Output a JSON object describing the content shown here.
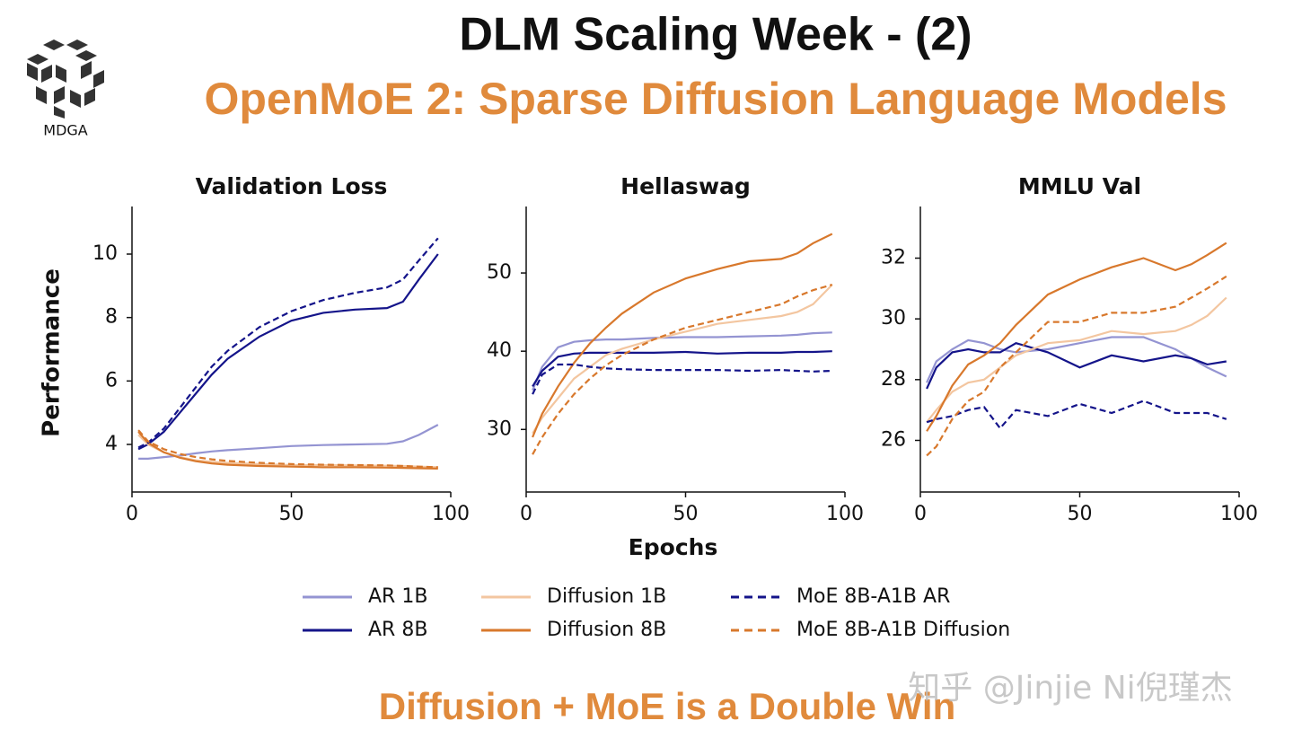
{
  "title": "DLM Scaling Week - (2)",
  "subtitle": "OpenMoE 2: Sparse Diffusion Language Models",
  "logo_text": "MDGA",
  "footer": "Diffusion + MoE is a Double Win",
  "watermark": "知乎 @Jinjie Ni倪瑾杰",
  "chart_data": [
    {
      "type": "line",
      "title": "Validation Loss",
      "y_label": "Performance",
      "x": [
        2,
        5,
        10,
        15,
        20,
        25,
        30,
        40,
        50,
        60,
        70,
        80,
        85,
        90,
        96
      ],
      "xlim": [
        0,
        100
      ],
      "xticks": [
        0,
        50,
        100
      ],
      "ylim": [
        2.5,
        11.5
      ],
      "yticks": [
        4,
        6,
        8,
        10
      ],
      "series": [
        {
          "name": "AR 1B",
          "color": "#9494d2",
          "dash": false,
          "values": [
            3.55,
            3.55,
            3.6,
            3.65,
            3.72,
            3.78,
            3.82,
            3.88,
            3.95,
            3.98,
            4.0,
            4.02,
            4.1,
            4.3,
            4.62
          ]
        },
        {
          "name": "AR 8B",
          "color": "#14148a",
          "dash": false,
          "values": [
            3.85,
            4.0,
            4.4,
            5.0,
            5.6,
            6.2,
            6.7,
            7.4,
            7.9,
            8.15,
            8.25,
            8.3,
            8.5,
            9.2,
            10.0
          ]
        },
        {
          "name": "Diffusion 1B",
          "color": "#f3c6a0",
          "dash": false,
          "values": [
            4.3,
            4.0,
            3.75,
            3.6,
            3.5,
            3.45,
            3.42,
            3.38,
            3.35,
            3.35,
            3.34,
            3.33,
            3.32,
            3.3,
            3.28
          ]
        },
        {
          "name": "Diffusion 8B",
          "color": "#d8782c",
          "dash": false,
          "values": [
            4.4,
            4.05,
            3.75,
            3.58,
            3.47,
            3.4,
            3.36,
            3.32,
            3.3,
            3.28,
            3.28,
            3.27,
            3.26,
            3.25,
            3.24
          ]
        },
        {
          "name": "MoE 8B-A1B AR",
          "color": "#14148a",
          "dash": true,
          "values": [
            3.9,
            4.05,
            4.5,
            5.15,
            5.8,
            6.45,
            6.95,
            7.7,
            8.2,
            8.55,
            8.78,
            8.95,
            9.2,
            9.8,
            10.5
          ]
        },
        {
          "name": "MoE 8B-A1B Diffusion",
          "color": "#d8782c",
          "dash": true,
          "values": [
            4.45,
            4.1,
            3.85,
            3.7,
            3.6,
            3.53,
            3.48,
            3.42,
            3.38,
            3.36,
            3.35,
            3.34,
            3.32,
            3.3,
            3.28
          ]
        }
      ]
    },
    {
      "type": "line",
      "title": "Hellaswag",
      "x_label": "Epochs",
      "x": [
        2,
        5,
        10,
        15,
        20,
        25,
        30,
        40,
        50,
        60,
        70,
        80,
        85,
        90,
        96
      ],
      "xlim": [
        0,
        100
      ],
      "xticks": [
        0,
        50,
        100
      ],
      "ylim": [
        22,
        58.5
      ],
      "yticks": [
        30,
        40,
        50
      ],
      "series": [
        {
          "name": "AR 1B",
          "color": "#9494d2",
          "dash": false,
          "values": [
            35,
            38,
            40.5,
            41.2,
            41.4,
            41.5,
            41.5,
            41.7,
            41.8,
            41.8,
            41.9,
            42,
            42.1,
            42.3,
            42.4
          ]
        },
        {
          "name": "AR 8B",
          "color": "#14148a",
          "dash": false,
          "values": [
            35.5,
            37.5,
            39.3,
            39.7,
            39.8,
            39.8,
            39.8,
            39.8,
            39.9,
            39.7,
            39.8,
            39.8,
            39.9,
            39.9,
            40
          ]
        },
        {
          "name": "Diffusion 1B",
          "color": "#f3c6a0",
          "dash": false,
          "values": [
            29.5,
            31.5,
            34,
            36.5,
            38,
            39.5,
            40.3,
            41.5,
            42.5,
            43.5,
            44,
            44.5,
            45,
            46,
            48.5
          ]
        },
        {
          "name": "Diffusion 8B",
          "color": "#d8782c",
          "dash": false,
          "values": [
            29,
            32,
            35.5,
            38.5,
            41,
            43,
            44.8,
            47.5,
            49.3,
            50.5,
            51.5,
            51.8,
            52.5,
            53.8,
            55
          ]
        },
        {
          "name": "MoE 8B-A1B AR",
          "color": "#14148a",
          "dash": true,
          "values": [
            34.5,
            37,
            38.3,
            38.3,
            38,
            37.8,
            37.7,
            37.6,
            37.6,
            37.6,
            37.5,
            37.6,
            37.5,
            37.4,
            37.5
          ]
        },
        {
          "name": "MoE 8B-A1B Diffusion",
          "color": "#d8782c",
          "dash": true,
          "values": [
            26.8,
            29,
            32,
            34.5,
            36.5,
            38.2,
            39.5,
            41.5,
            43,
            44,
            45,
            46,
            47,
            47.8,
            48.5
          ]
        }
      ]
    },
    {
      "type": "line",
      "title": "MMLU Val",
      "x": [
        2,
        5,
        10,
        15,
        20,
        25,
        30,
        40,
        50,
        60,
        70,
        80,
        85,
        90,
        96
      ],
      "xlim": [
        0,
        100
      ],
      "xticks": [
        0,
        50,
        100
      ],
      "ylim": [
        24.3,
        33.7
      ],
      "yticks": [
        26,
        28,
        30,
        32
      ],
      "series": [
        {
          "name": "AR 1B",
          "color": "#9494d2",
          "dash": false,
          "values": [
            27.9,
            28.6,
            29.0,
            29.3,
            29.2,
            29.0,
            28.9,
            29.0,
            29.2,
            29.4,
            29.4,
            29.0,
            28.7,
            28.4,
            28.1
          ]
        },
        {
          "name": "AR 8B",
          "color": "#14148a",
          "dash": false,
          "values": [
            27.7,
            28.4,
            28.9,
            29.0,
            28.9,
            28.9,
            29.2,
            28.9,
            28.4,
            28.8,
            28.6,
            28.8,
            28.7,
            28.5,
            28.6
          ]
        },
        {
          "name": "Diffusion 1B",
          "color": "#f3c6a0",
          "dash": false,
          "values": [
            26.6,
            27.0,
            27.6,
            27.9,
            28.0,
            28.4,
            28.8,
            29.2,
            29.3,
            29.6,
            29.5,
            29.6,
            29.8,
            30.1,
            30.7
          ]
        },
        {
          "name": "Diffusion 8B",
          "color": "#d8782c",
          "dash": false,
          "values": [
            26.3,
            26.8,
            27.8,
            28.5,
            28.8,
            29.2,
            29.8,
            30.8,
            31.3,
            31.7,
            32.0,
            31.6,
            31.8,
            32.1,
            32.5
          ]
        },
        {
          "name": "MoE 8B-A1B AR",
          "color": "#14148a",
          "dash": true,
          "values": [
            26.6,
            26.7,
            26.8,
            27.0,
            27.1,
            26.4,
            27.0,
            26.8,
            27.2,
            26.9,
            27.3,
            26.9,
            26.9,
            26.9,
            26.7
          ]
        },
        {
          "name": "MoE 8B-A1B Diffusion",
          "color": "#d8782c",
          "dash": true,
          "values": [
            25.5,
            25.8,
            26.7,
            27.3,
            27.6,
            28.4,
            28.9,
            29.9,
            29.9,
            30.2,
            30.2,
            30.4,
            30.7,
            31.0,
            31.4
          ]
        }
      ]
    }
  ]
}
